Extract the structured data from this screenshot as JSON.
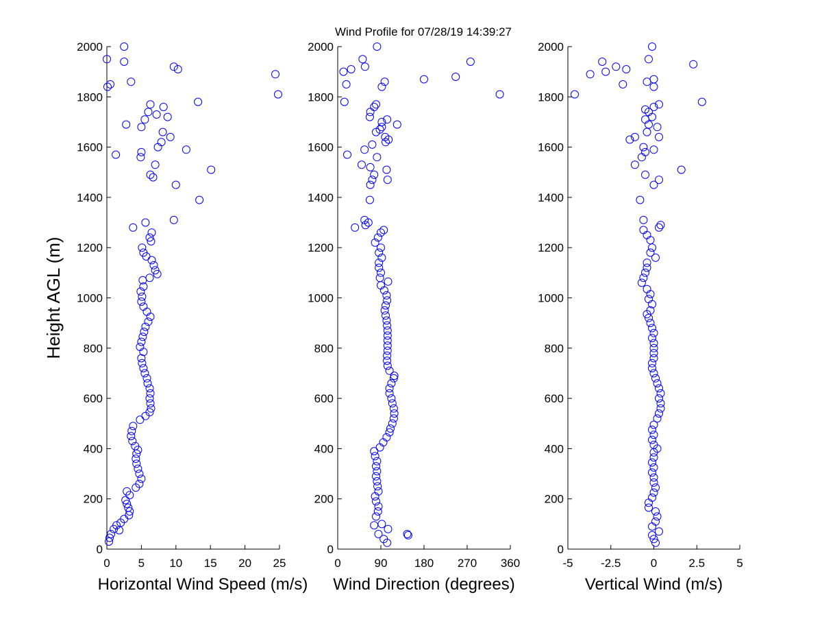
{
  "figure": {
    "title": "Wind Profile for  07/28/19 14:39:27"
  },
  "chart_data": [
    {
      "type": "scatter",
      "title": "Wind Profile for  07/28/19 14:39:27",
      "xlabel": "Horizontal Wind Speed (m/s)",
      "ylabel": "Height AGL (m)",
      "xlim": [
        0,
        25
      ],
      "ylim": [
        0,
        2000
      ],
      "xticks": [
        "0",
        "5",
        "10",
        "15",
        "20",
        "25"
      ],
      "yticks": [
        "0",
        "200",
        "400",
        "600",
        "800",
        "1000",
        "1200",
        "1400",
        "1600",
        "1800",
        "2000"
      ],
      "marker_color": "#0000ff",
      "marker": "circle-open",
      "points": [
        [
          0.3,
          30
        ],
        [
          0.4,
          45
        ],
        [
          0.6,
          60
        ],
        [
          1.0,
          80
        ],
        [
          1.4,
          95
        ],
        [
          2.0,
          105
        ],
        [
          1.8,
          75
        ],
        [
          2.5,
          120
        ],
        [
          3.2,
          135
        ],
        [
          3.3,
          150
        ],
        [
          3.1,
          165
        ],
        [
          2.9,
          180
        ],
        [
          2.7,
          195
        ],
        [
          3.3,
          215
        ],
        [
          2.9,
          230
        ],
        [
          4.2,
          245
        ],
        [
          4.7,
          260
        ],
        [
          5.0,
          280
        ],
        [
          4.7,
          300
        ],
        [
          4.5,
          320
        ],
        [
          4.3,
          340
        ],
        [
          4.2,
          360
        ],
        [
          4.3,
          380
        ],
        [
          4.5,
          395
        ],
        [
          4.1,
          410
        ],
        [
          3.7,
          430
        ],
        [
          3.5,
          450
        ],
        [
          3.6,
          470
        ],
        [
          3.8,
          490
        ],
        [
          4.8,
          515
        ],
        [
          5.6,
          530
        ],
        [
          6.2,
          545
        ],
        [
          6.4,
          560
        ],
        [
          6.3,
          580
        ],
        [
          6.2,
          600
        ],
        [
          6.3,
          620
        ],
        [
          6.2,
          640
        ],
        [
          5.9,
          660
        ],
        [
          5.8,
          680
        ],
        [
          5.5,
          700
        ],
        [
          5.3,
          720
        ],
        [
          5.1,
          740
        ],
        [
          5.0,
          760
        ],
        [
          5.3,
          785
        ],
        [
          4.8,
          805
        ],
        [
          5.0,
          825
        ],
        [
          5.2,
          845
        ],
        [
          5.4,
          865
        ],
        [
          5.6,
          885
        ],
        [
          6.0,
          905
        ],
        [
          6.3,
          925
        ],
        [
          5.8,
          945
        ],
        [
          5.3,
          965
        ],
        [
          5.0,
          985
        ],
        [
          5.1,
          1005
        ],
        [
          4.9,
          1025
        ],
        [
          5.3,
          1045
        ],
        [
          5.2,
          1070
        ],
        [
          6.2,
          1080
        ],
        [
          7.3,
          1095
        ],
        [
          7.0,
          1110
        ],
        [
          6.8,
          1130
        ],
        [
          6.5,
          1150
        ],
        [
          5.7,
          1165
        ],
        [
          5.3,
          1180
        ],
        [
          5.1,
          1200
        ],
        [
          6.4,
          1225
        ],
        [
          6.2,
          1240
        ],
        [
          6.5,
          1260
        ],
        [
          3.8,
          1280
        ],
        [
          5.6,
          1300
        ],
        [
          9.7,
          1310
        ],
        [
          13.4,
          1390
        ],
        [
          10.0,
          1450
        ],
        [
          6.7,
          1480
        ],
        [
          6.3,
          1490
        ],
        [
          15.1,
          1510
        ],
        [
          7.0,
          1530
        ],
        [
          4.9,
          1560
        ],
        [
          1.3,
          1570
        ],
        [
          5.0,
          1580
        ],
        [
          11.5,
          1590
        ],
        [
          7.4,
          1600
        ],
        [
          7.9,
          1620
        ],
        [
          9.2,
          1640
        ],
        [
          8.1,
          1660
        ],
        [
          5.0,
          1680
        ],
        [
          2.8,
          1690
        ],
        [
          5.5,
          1710
        ],
        [
          6.0,
          1740
        ],
        [
          8.8,
          1720
        ],
        [
          7.2,
          1730
        ],
        [
          8.2,
          1760
        ],
        [
          6.3,
          1770
        ],
        [
          13.2,
          1780
        ],
        [
          24.8,
          1810
        ],
        [
          0.5,
          1850
        ],
        [
          0.1,
          1840
        ],
        [
          3.5,
          1860
        ],
        [
          24.4,
          1890
        ],
        [
          9.7,
          1920
        ],
        [
          10.3,
          1910
        ],
        [
          2.5,
          1940
        ],
        [
          0.0,
          1950
        ],
        [
          2.5,
          2000
        ]
      ]
    },
    {
      "type": "scatter",
      "xlabel": "Wind Direction (degrees)",
      "ylabel": "",
      "xlim": [
        0,
        360
      ],
      "ylim": [
        0,
        2000
      ],
      "xticks": [
        "0",
        "90",
        "180",
        "270",
        "360"
      ],
      "yticks": [
        "0",
        "200",
        "400",
        "600",
        "800",
        "1000",
        "1200",
        "1400",
        "1600",
        "1800",
        "2000"
      ],
      "marker_color": "#0000ff",
      "marker": "circle-open",
      "points": [
        [
          103,
          25
        ],
        [
          96,
          40
        ],
        [
          147,
          55
        ],
        [
          145,
          60
        ],
        [
          85,
          60
        ],
        [
          105,
          80
        ],
        [
          92,
          100
        ],
        [
          76,
          95
        ],
        [
          80,
          130
        ],
        [
          84,
          150
        ],
        [
          85,
          170
        ],
        [
          80,
          190
        ],
        [
          78,
          210
        ],
        [
          85,
          230
        ],
        [
          83,
          250
        ],
        [
          82,
          270
        ],
        [
          80,
          290
        ],
        [
          82,
          310
        ],
        [
          80,
          330
        ],
        [
          82,
          350
        ],
        [
          78,
          370
        ],
        [
          76,
          390
        ],
        [
          88,
          405
        ],
        [
          95,
          425
        ],
        [
          102,
          445
        ],
        [
          108,
          465
        ],
        [
          110,
          480
        ],
        [
          114,
          500
        ],
        [
          117,
          520
        ],
        [
          118,
          540
        ],
        [
          117,
          560
        ],
        [
          114,
          580
        ],
        [
          112,
          600
        ],
        [
          108,
          620
        ],
        [
          108,
          640
        ],
        [
          112,
          660
        ],
        [
          117,
          680
        ],
        [
          118,
          690
        ],
        [
          108,
          710
        ],
        [
          104,
          730
        ],
        [
          103,
          750
        ],
        [
          103,
          770
        ],
        [
          104,
          790
        ],
        [
          104,
          810
        ],
        [
          104,
          830
        ],
        [
          104,
          850
        ],
        [
          104,
          870
        ],
        [
          103,
          890
        ],
        [
          102,
          910
        ],
        [
          100,
          930
        ],
        [
          98,
          950
        ],
        [
          100,
          970
        ],
        [
          103,
          990
        ],
        [
          102,
          1010
        ],
        [
          97,
          1030
        ],
        [
          90,
          1050
        ],
        [
          105,
          1065
        ],
        [
          88,
          1080
        ],
        [
          90,
          1100
        ],
        [
          86,
          1120
        ],
        [
          86,
          1140
        ],
        [
          92,
          1160
        ],
        [
          86,
          1180
        ],
        [
          90,
          1200
        ],
        [
          78,
          1220
        ],
        [
          84,
          1240
        ],
        [
          90,
          1260
        ],
        [
          96,
          1270
        ],
        [
          36,
          1280
        ],
        [
          58,
          1290
        ],
        [
          64,
          1300
        ],
        [
          56,
          1310
        ],
        [
          67,
          1390
        ],
        [
          68,
          1450
        ],
        [
          72,
          1470
        ],
        [
          104,
          1470
        ],
        [
          76,
          1490
        ],
        [
          102,
          1510
        ],
        [
          50,
          1530
        ],
        [
          68,
          1520
        ],
        [
          82,
          1560
        ],
        [
          20,
          1570
        ],
        [
          56,
          1590
        ],
        [
          72,
          1610
        ],
        [
          100,
          1620
        ],
        [
          99,
          1640
        ],
        [
          106,
          1630
        ],
        [
          80,
          1660
        ],
        [
          88,
          1670
        ],
        [
          92,
          1680
        ],
        [
          124,
          1690
        ],
        [
          103,
          1710
        ],
        [
          92,
          1700
        ],
        [
          67,
          1720
        ],
        [
          68,
          1740
        ],
        [
          80,
          1770
        ],
        [
          76,
          1760
        ],
        [
          246,
          1880
        ],
        [
          180,
          1870
        ],
        [
          12,
          1900
        ],
        [
          338,
          1810
        ],
        [
          14,
          1780
        ],
        [
          18,
          1850
        ],
        [
          92,
          1840
        ],
        [
          98,
          1860
        ],
        [
          28,
          1910
        ],
        [
          52,
          1950
        ],
        [
          57,
          1920
        ],
        [
          277,
          1940
        ],
        [
          82,
          2000
        ]
      ]
    },
    {
      "type": "scatter",
      "xlabel": "Vertical Wind (m/s)",
      "ylabel": "",
      "xlim": [
        -5,
        5
      ],
      "ylim": [
        0,
        2000
      ],
      "xticks": [
        "-5",
        "-2.5",
        "0",
        "2.5",
        "5"
      ],
      "yticks": [
        "0",
        "200",
        "400",
        "600",
        "800",
        "1000",
        "1200",
        "1400",
        "1600",
        "1800",
        "2000"
      ],
      "marker_color": "#0000ff",
      "marker": "circle-open",
      "points": [
        [
          0.1,
          25
        ],
        [
          0.0,
          40
        ],
        [
          -0.1,
          55
        ],
        [
          0.3,
          70
        ],
        [
          -0.1,
          90
        ],
        [
          0.1,
          110
        ],
        [
          0.2,
          130
        ],
        [
          0.1,
          150
        ],
        [
          -0.3,
          165
        ],
        [
          -0.3,
          185
        ],
        [
          -0.1,
          205
        ],
        [
          0.0,
          225
        ],
        [
          0.1,
          245
        ],
        [
          0.0,
          265
        ],
        [
          0.0,
          285
        ],
        [
          -0.1,
          305
        ],
        [
          0.0,
          325
        ],
        [
          -0.1,
          345
        ],
        [
          0.0,
          365
        ],
        [
          0.0,
          385
        ],
        [
          0.2,
          400
        ],
        [
          0.0,
          415
        ],
        [
          -0.1,
          435
        ],
        [
          0.0,
          455
        ],
        [
          -0.1,
          475
        ],
        [
          0.0,
          495
        ],
        [
          0.2,
          520
        ],
        [
          0.3,
          540
        ],
        [
          0.4,
          560
        ],
        [
          0.4,
          580
        ],
        [
          0.3,
          600
        ],
        [
          0.4,
          620
        ],
        [
          0.3,
          640
        ],
        [
          0.2,
          660
        ],
        [
          0.1,
          680
        ],
        [
          0.0,
          700
        ],
        [
          -0.1,
          720
        ],
        [
          -0.1,
          740
        ],
        [
          0.0,
          760
        ],
        [
          0.0,
          780
        ],
        [
          0.0,
          800
        ],
        [
          0.0,
          820
        ],
        [
          -0.1,
          840
        ],
        [
          0.0,
          860
        ],
        [
          -0.1,
          880
        ],
        [
          -0.2,
          900
        ],
        [
          -0.3,
          920
        ],
        [
          -0.4,
          935
        ],
        [
          -0.2,
          950
        ],
        [
          -0.1,
          975
        ],
        [
          -0.3,
          995
        ],
        [
          -0.2,
          1015
        ],
        [
          -0.4,
          1035
        ],
        [
          -0.7,
          1060
        ],
        [
          -0.6,
          1080
        ],
        [
          -0.5,
          1100
        ],
        [
          -0.4,
          1120
        ],
        [
          -0.4,
          1140
        ],
        [
          0.1,
          1160
        ],
        [
          -0.2,
          1180
        ],
        [
          -0.1,
          1200
        ],
        [
          -0.2,
          1230
        ],
        [
          -0.4,
          1250
        ],
        [
          -0.6,
          1270
        ],
        [
          0.3,
          1280
        ],
        [
          0.4,
          1290
        ],
        [
          -0.6,
          1310
        ],
        [
          -0.8,
          1390
        ],
        [
          0.0,
          1450
        ],
        [
          0.3,
          1470
        ],
        [
          -0.5,
          1490
        ],
        [
          1.6,
          1510
        ],
        [
          -1.1,
          1530
        ],
        [
          -0.7,
          1560
        ],
        [
          -0.5,
          1580
        ],
        [
          0.0,
          1590
        ],
        [
          -0.6,
          1600
        ],
        [
          -1.4,
          1630
        ],
        [
          -1.1,
          1640
        ],
        [
          0.3,
          1640
        ],
        [
          -0.4,
          1660
        ],
        [
          0.2,
          1680
        ],
        [
          -0.3,
          1690
        ],
        [
          -0.5,
          1710
        ],
        [
          -0.1,
          1720
        ],
        [
          -0.3,
          1740
        ],
        [
          0.0,
          1760
        ],
        [
          -0.5,
          1750
        ],
        [
          0.3,
          1770
        ],
        [
          2.8,
          1780
        ],
        [
          -4.6,
          1810
        ],
        [
          -1.8,
          1850
        ],
        [
          0.0,
          1840
        ],
        [
          0.0,
          1870
        ],
        [
          -0.4,
          1860
        ],
        [
          -3.7,
          1890
        ],
        [
          -2.8,
          1900
        ],
        [
          -2.2,
          1920
        ],
        [
          -1.6,
          1910
        ],
        [
          2.3,
          1930
        ],
        [
          -3.0,
          1940
        ],
        [
          -0.3,
          1950
        ],
        [
          -0.1,
          2000
        ]
      ]
    }
  ]
}
